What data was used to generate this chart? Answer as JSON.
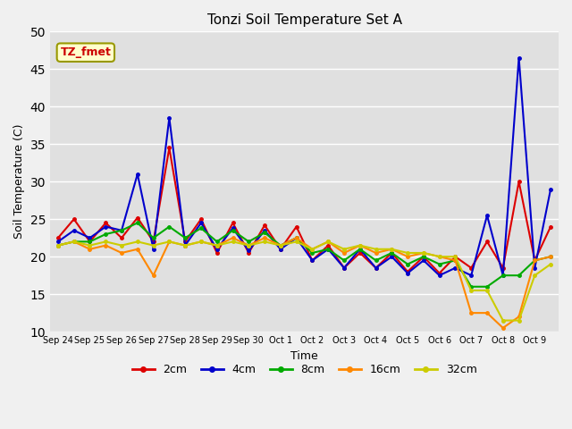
{
  "title": "Tonzi Soil Temperature Set A",
  "xlabel": "Time",
  "ylabel": "Soil Temperature (C)",
  "ylim": [
    10,
    50
  ],
  "yticks": [
    10,
    15,
    20,
    25,
    30,
    35,
    40,
    45,
    50
  ],
  "x_labels": [
    "Sep 24",
    "Sep 25",
    "Sep 26",
    "Sep 27",
    "Sep 28",
    "Sep 29",
    "Sep 30",
    "Oct 1",
    "Oct 2",
    "Oct 3",
    "Oct 4",
    "Oct 5",
    "Oct 6",
    "Oct 7",
    "Oct 8",
    "Oct 9"
  ],
  "annotation_text": "TZ_fmet",
  "annotation_color": "#cc0000",
  "annotation_bg": "#ffffcc",
  "annotation_edge": "#999900",
  "fig_bg": "#f0f0f0",
  "plot_bg": "#e0e0e0",
  "grid_color": "#ffffff",
  "colors": {
    "2cm": "#dd0000",
    "4cm": "#0000cc",
    "8cm": "#00aa00",
    "16cm": "#ff8800",
    "32cm": "#cccc00"
  },
  "series_order": [
    "2cm",
    "4cm",
    "8cm",
    "16cm",
    "32cm"
  ],
  "data": {
    "2cm": [
      22.5,
      25.0,
      22.0,
      24.5,
      22.5,
      25.2,
      22.0,
      34.5,
      22.0,
      25.0,
      20.5,
      24.5,
      20.5,
      24.2,
      21.0,
      24.0,
      19.5,
      21.5,
      18.5,
      20.5,
      18.5,
      20.5,
      18.0,
      20.0,
      17.8,
      20.0,
      18.5,
      22.0,
      18.5,
      30.0,
      19.5,
      24.0
    ],
    "4cm": [
      22.0,
      23.5,
      22.5,
      24.0,
      23.5,
      31.0,
      21.0,
      38.5,
      21.5,
      24.5,
      21.0,
      23.8,
      20.8,
      23.5,
      21.0,
      22.5,
      19.5,
      21.0,
      18.5,
      21.0,
      18.5,
      20.0,
      17.8,
      19.5,
      17.5,
      18.5,
      17.5,
      25.5,
      17.5,
      46.5,
      18.5,
      29.0
    ],
    "8cm": [
      21.5,
      22.0,
      22.0,
      23.0,
      23.5,
      24.5,
      22.5,
      24.0,
      22.5,
      23.8,
      22.0,
      23.5,
      22.0,
      23.2,
      21.5,
      22.5,
      20.5,
      21.0,
      19.5,
      21.0,
      19.5,
      20.5,
      19.0,
      20.0,
      19.0,
      19.5,
      16.0,
      16.0,
      17.5,
      17.5,
      19.5,
      20.0
    ],
    "16cm": [
      21.5,
      22.0,
      21.0,
      21.5,
      20.5,
      21.0,
      17.5,
      22.0,
      21.5,
      22.0,
      21.5,
      22.5,
      21.5,
      22.5,
      21.5,
      22.5,
      21.0,
      22.0,
      20.5,
      21.5,
      20.5,
      21.0,
      20.0,
      20.5,
      20.0,
      19.5,
      12.5,
      12.5,
      10.5,
      12.0,
      19.5,
      20.0
    ],
    "32cm": [
      21.5,
      22.0,
      21.5,
      22.0,
      21.5,
      22.0,
      21.5,
      22.0,
      21.5,
      22.0,
      21.5,
      22.0,
      21.5,
      22.0,
      21.5,
      22.0,
      21.0,
      22.0,
      21.0,
      21.5,
      21.0,
      21.0,
      20.5,
      20.5,
      20.0,
      20.0,
      15.5,
      15.5,
      11.5,
      11.5,
      17.5,
      19.0
    ]
  },
  "n_per_day": 2,
  "n_days": 16
}
